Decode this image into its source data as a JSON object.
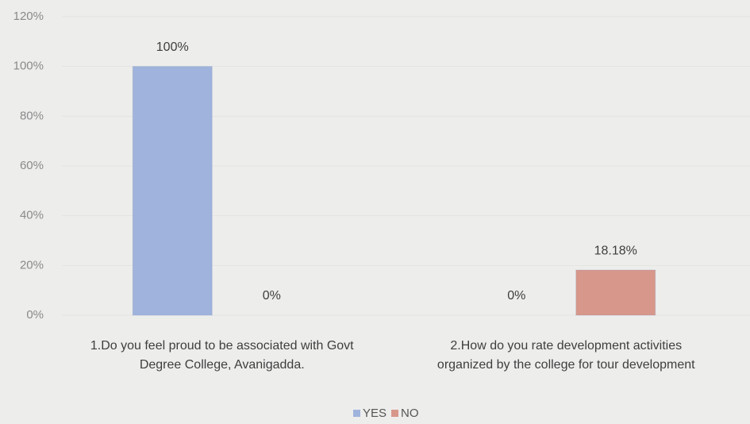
{
  "chart_data": {
    "type": "bar",
    "categories": [
      "1.Do you feel proud to be associated with Govt\nDegree College, Avanigadda.",
      "2.How do you rate development activities\norganized by the college for tour development"
    ],
    "series": [
      {
        "name": "YES",
        "color": "#9fb3dc",
        "values": [
          100,
          0
        ],
        "value_labels": [
          "100%",
          "0%"
        ]
      },
      {
        "name": "NO",
        "color": "#d8978b",
        "values": [
          0,
          18.18
        ],
        "value_labels": [
          "0%",
          "18.18%"
        ]
      }
    ],
    "ylim": [
      0,
      120
    ],
    "yticks": [
      {
        "value": 0,
        "label": "0%"
      },
      {
        "value": 20,
        "label": "20%"
      },
      {
        "value": 40,
        "label": "40%"
      },
      {
        "value": 60,
        "label": "60%"
      },
      {
        "value": 80,
        "label": "80%"
      },
      {
        "value": 100,
        "label": "100%"
      },
      {
        "value": 120,
        "label": "120%"
      }
    ],
    "grid": true,
    "legend": "bottom"
  }
}
